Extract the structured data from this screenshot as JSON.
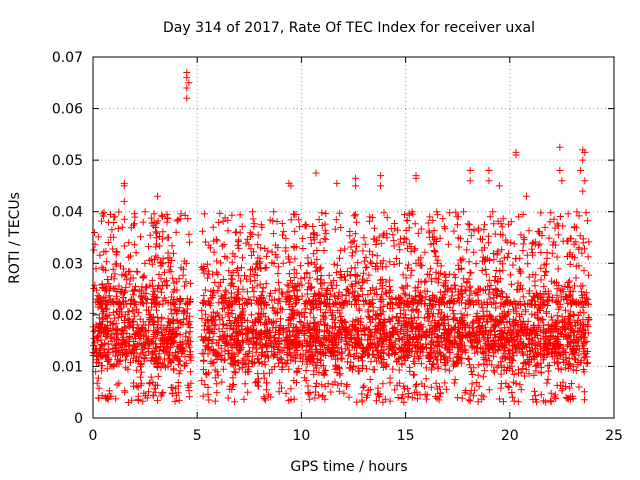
{
  "chart_data": {
    "type": "scatter",
    "title": "Day 314 of 2017, Rate Of TEC Index for receiver uxal",
    "xlabel": "GPS time / hours",
    "ylabel": "ROTI / TECUs",
    "xlim": [
      0,
      25
    ],
    "ylim": [
      0,
      0.07
    ],
    "x_ticks": [
      0,
      5,
      10,
      15,
      20,
      25
    ],
    "x_tick_labels": [
      "0",
      "5",
      "10",
      "15",
      "20",
      "25"
    ],
    "y_ticks": [
      0,
      0.01,
      0.02,
      0.03,
      0.04,
      0.05,
      0.06,
      0.07
    ],
    "y_tick_labels": [
      "0",
      "0.01",
      "0.02",
      "0.03",
      "0.04",
      "0.05",
      "0.06",
      "0.07"
    ],
    "grid": true,
    "marker": "+",
    "marker_color": "#ff0000",
    "data_gap_hours": [
      4.7,
      5.2
    ],
    "data_range_hours": [
      0.0,
      23.8
    ],
    "core_band": [
      0.005,
      0.025
    ],
    "outliers": [
      {
        "x": 4.5,
        "y": 0.067
      },
      {
        "x": 4.5,
        "y": 0.066
      },
      {
        "x": 4.6,
        "y": 0.065
      },
      {
        "x": 4.5,
        "y": 0.064
      },
      {
        "x": 4.5,
        "y": 0.062
      },
      {
        "x": 1.5,
        "y": 0.0455
      },
      {
        "x": 1.5,
        "y": 0.045
      },
      {
        "x": 1.5,
        "y": 0.042
      },
      {
        "x": 3.1,
        "y": 0.043
      },
      {
        "x": 2.5,
        "y": 0.04
      },
      {
        "x": 9.4,
        "y": 0.0455
      },
      {
        "x": 9.5,
        "y": 0.045
      },
      {
        "x": 10.7,
        "y": 0.0475
      },
      {
        "x": 11.7,
        "y": 0.0455
      },
      {
        "x": 12.6,
        "y": 0.0465
      },
      {
        "x": 12.6,
        "y": 0.045
      },
      {
        "x": 13.8,
        "y": 0.047
      },
      {
        "x": 13.8,
        "y": 0.045
      },
      {
        "x": 15.5,
        "y": 0.047
      },
      {
        "x": 15.5,
        "y": 0.0465
      },
      {
        "x": 16.5,
        "y": 0.04
      },
      {
        "x": 18.1,
        "y": 0.048
      },
      {
        "x": 18.1,
        "y": 0.046
      },
      {
        "x": 19.0,
        "y": 0.048
      },
      {
        "x": 19.0,
        "y": 0.046
      },
      {
        "x": 19.5,
        "y": 0.045
      },
      {
        "x": 20.3,
        "y": 0.0515
      },
      {
        "x": 20.3,
        "y": 0.051
      },
      {
        "x": 20.8,
        "y": 0.043
      },
      {
        "x": 22.4,
        "y": 0.0525
      },
      {
        "x": 22.4,
        "y": 0.048
      },
      {
        "x": 22.5,
        "y": 0.046
      },
      {
        "x": 23.5,
        "y": 0.052
      },
      {
        "x": 23.5,
        "y": 0.05
      },
      {
        "x": 23.6,
        "y": 0.0515
      },
      {
        "x": 23.4,
        "y": 0.048
      },
      {
        "x": 23.6,
        "y": 0.046
      },
      {
        "x": 23.5,
        "y": 0.044
      }
    ]
  }
}
